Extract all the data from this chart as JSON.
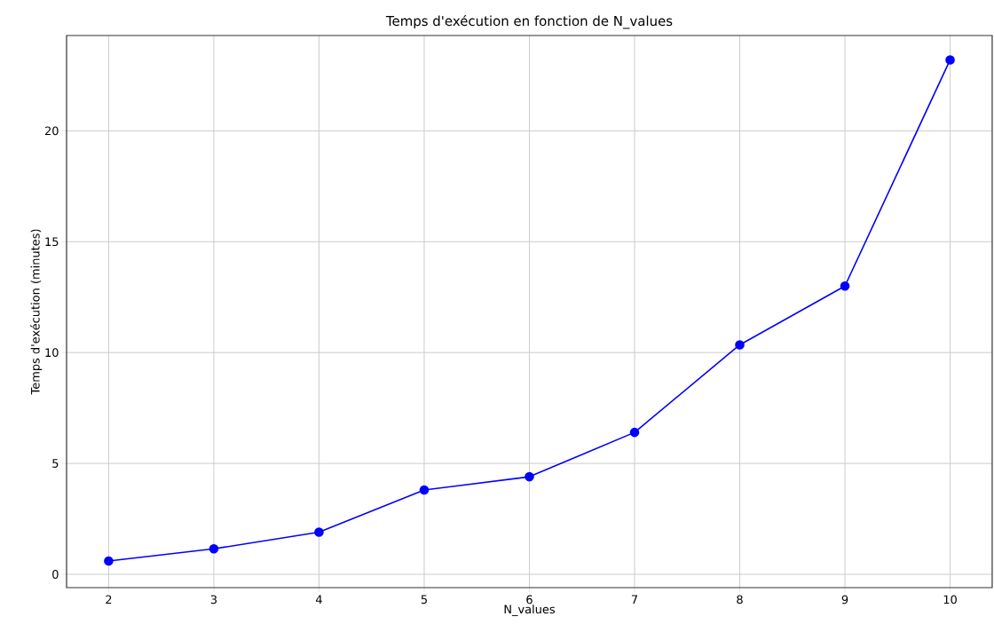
{
  "chart_data": {
    "type": "line",
    "title": "Temps d'exécution en fonction de N_values",
    "xlabel": "N_values",
    "ylabel": "Temps d'exécution (minutes)",
    "x": [
      2,
      3,
      4,
      5,
      6,
      7,
      8,
      9,
      10
    ],
    "series": [
      {
        "color": "#0000ff",
        "values": [
          0.6,
          1.15,
          1.9,
          3.8,
          4.4,
          6.4,
          10.35,
          13.0,
          23.2
        ]
      }
    ],
    "xlim": [
      1.6,
      10.4
    ],
    "ylim": [
      -0.6,
      24.3
    ],
    "xticks": [
      2,
      3,
      4,
      5,
      6,
      7,
      8,
      9,
      10
    ],
    "yticks": [
      0,
      5,
      10,
      15,
      20
    ],
    "grid": true,
    "marker": "circle",
    "line_style": "solid"
  }
}
